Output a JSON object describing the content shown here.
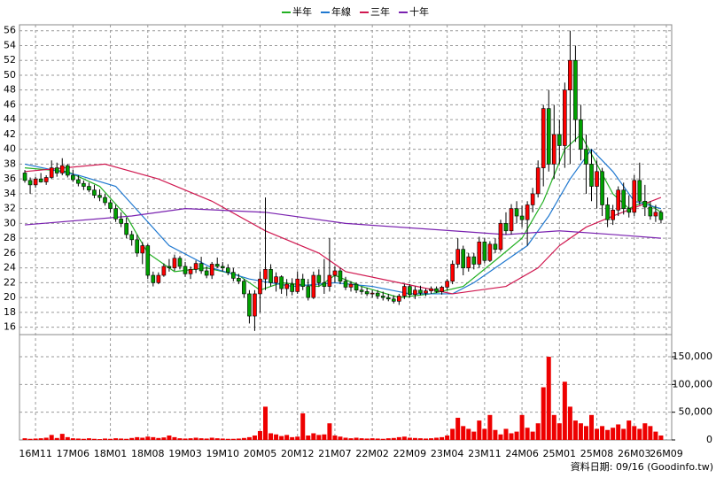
{
  "chart_data": {
    "type": "candlestick",
    "legend": [
      {
        "name": "半年",
        "color": "#22b022"
      },
      {
        "name": "年線",
        "color": "#1f78d0"
      },
      {
        "name": "三年",
        "color": "#d01850"
      },
      {
        "name": "十年",
        "color": "#7a22b0"
      }
    ],
    "up_color": "#ff0000",
    "down_color": "#00a000",
    "volume_color": "#ee0000",
    "grid": true,
    "xlim": [
      -1,
      121
    ],
    "xticks": [
      {
        "value": 2,
        "label": "16M11"
      },
      {
        "value": 9,
        "label": "17M06"
      },
      {
        "value": 16,
        "label": "18M01"
      },
      {
        "value": 23,
        "label": "18M08"
      },
      {
        "value": 30,
        "label": "19M03"
      },
      {
        "value": 37,
        "label": "19M10"
      },
      {
        "value": 44,
        "label": "20M05"
      },
      {
        "value": 51,
        "label": "20M12"
      },
      {
        "value": 58,
        "label": "21M07"
      },
      {
        "value": 65,
        "label": "22M02"
      },
      {
        "value": 72,
        "label": "22M09"
      },
      {
        "value": 79,
        "label": "23M04"
      },
      {
        "value": 86,
        "label": "23M11"
      },
      {
        "value": 93,
        "label": "24M06"
      },
      {
        "value": 100,
        "label": "25M01"
      },
      {
        "value": 107,
        "label": "25M08"
      },
      {
        "value": 114,
        "label": "26M03"
      },
      {
        "value": 120,
        "label": "26M09"
      }
    ],
    "ylim": [
      15,
      56.8
    ],
    "yticks": [
      16,
      18,
      20,
      22,
      24,
      26,
      28,
      30,
      32,
      34,
      36,
      38,
      40,
      42,
      44,
      46,
      48,
      50,
      52,
      54,
      56
    ],
    "y2lim": [
      0,
      190000
    ],
    "y2ticks": [
      0,
      {
        "value": 50000,
        "label": "50,000"
      },
      {
        "value": 100000,
        "label": "100,000"
      },
      {
        "value": 150000,
        "label": "150,000"
      }
    ],
    "ohlc": [
      [
        36.8,
        37.2,
        35.5,
        35.8
      ],
      [
        35.8,
        36.2,
        34,
        35.2
      ],
      [
        35.2,
        36.3,
        34.8,
        36
      ],
      [
        36,
        36.8,
        35.5,
        35.6
      ],
      [
        35.6,
        36.5,
        35.2,
        36.2
      ],
      [
        36.2,
        38.5,
        36,
        37.5
      ],
      [
        37.5,
        38.2,
        36.3,
        36.8
      ],
      [
        36.8,
        38.8,
        36.5,
        37.8
      ],
      [
        37.8,
        38,
        36.2,
        36.5
      ],
      [
        36.5,
        37.2,
        35.6,
        35.9
      ],
      [
        35.9,
        36.5,
        35,
        35.4
      ],
      [
        35.4,
        35.8,
        34.5,
        35
      ],
      [
        35,
        35.5,
        34.2,
        34.5
      ],
      [
        34.5,
        35.2,
        33.4,
        33.8
      ],
      [
        33.8,
        34.6,
        33,
        33.5
      ],
      [
        33.5,
        34,
        32.4,
        32.8
      ],
      [
        32.8,
        33.2,
        31.5,
        32
      ],
      [
        32,
        32.5,
        30.2,
        30.6
      ],
      [
        30.6,
        31.5,
        29.5,
        30
      ],
      [
        30,
        30.8,
        28,
        28.5
      ],
      [
        28.5,
        29,
        27,
        27.8
      ],
      [
        27.8,
        28.5,
        25.5,
        26
      ],
      [
        26,
        27.5,
        24.5,
        27
      ],
      [
        27,
        27.2,
        22.5,
        23
      ],
      [
        23,
        23.5,
        21.5,
        22
      ],
      [
        22,
        23.4,
        21.8,
        23
      ],
      [
        23,
        24.6,
        22.8,
        24.2
      ],
      [
        24.2,
        25.2,
        23.5,
        24
      ],
      [
        24,
        25.8,
        23.6,
        25.3
      ],
      [
        25.3,
        25.6,
        23.8,
        24.2
      ],
      [
        24.2,
        24.8,
        22.8,
        23.2
      ],
      [
        23.2,
        24.2,
        22.5,
        23.8
      ],
      [
        23.8,
        25,
        23.3,
        24.6
      ],
      [
        24.6,
        25.5,
        23.2,
        23.6
      ],
      [
        23.6,
        24.2,
        22.6,
        23
      ],
      [
        23,
        24.8,
        22.5,
        24.5
      ],
      [
        24.5,
        25.4,
        24,
        24.2
      ],
      [
        24.2,
        24.8,
        23.5,
        24
      ],
      [
        24,
        24.5,
        23,
        23.4
      ],
      [
        23.4,
        24,
        22.2,
        22.6
      ],
      [
        22.6,
        23.2,
        21.8,
        22.2
      ],
      [
        22.2,
        22.5,
        20,
        20.5
      ],
      [
        20.5,
        21,
        16.5,
        17.5
      ],
      [
        17.5,
        21,
        15.5,
        20.5
      ],
      [
        20.5,
        23.5,
        18,
        22.5
      ],
      [
        22.5,
        33.5,
        21,
        23.8
      ],
      [
        23.8,
        24.5,
        21.5,
        22
      ],
      [
        22,
        23.4,
        20.8,
        22.8
      ],
      [
        22.8,
        23,
        20.5,
        21.2
      ],
      [
        21.2,
        22.5,
        20.2,
        21.8
      ],
      [
        21.8,
        22.6,
        20.3,
        20.8
      ],
      [
        20.8,
        23.5,
        20.5,
        22.5
      ],
      [
        22.5,
        23.2,
        21,
        21.5
      ],
      [
        21.5,
        22.5,
        19.6,
        20
      ],
      [
        20,
        23.5,
        19.8,
        23
      ],
      [
        23,
        23.8,
        21.5,
        22
      ],
      [
        22,
        25.2,
        20.5,
        21.5
      ],
      [
        21.5,
        28,
        20.8,
        23
      ],
      [
        23,
        24.2,
        22,
        23.6
      ],
      [
        23.6,
        24,
        21.8,
        22.2
      ],
      [
        22.2,
        22.8,
        21,
        21.4
      ],
      [
        21.4,
        22.2,
        20.8,
        21.8
      ],
      [
        21.8,
        22,
        20.6,
        21
      ],
      [
        21,
        21.5,
        20.4,
        20.8
      ],
      [
        20.8,
        21.3,
        20.2,
        20.5
      ],
      [
        20.5,
        21,
        20,
        20.6
      ],
      [
        20.6,
        21,
        19.8,
        20.2
      ],
      [
        20.2,
        20.8,
        19.6,
        20
      ],
      [
        20,
        20.5,
        19.5,
        19.8
      ],
      [
        19.8,
        20.3,
        19.2,
        19.5
      ],
      [
        19.5,
        20.5,
        19,
        20.2
      ],
      [
        20.2,
        21.8,
        19.8,
        21.5
      ],
      [
        21.5,
        21.8,
        20,
        20.4
      ],
      [
        20.4,
        21.5,
        19.8,
        21
      ],
      [
        21,
        21.6,
        20.3,
        20.6
      ],
      [
        20.6,
        21.2,
        20.2,
        20.9
      ],
      [
        20.9,
        21.5,
        20.5,
        21.2
      ],
      [
        21.2,
        21.5,
        20.6,
        20.8
      ],
      [
        20.8,
        21.6,
        20.4,
        21.4
      ],
      [
        21.4,
        22.5,
        21,
        22.2
      ],
      [
        22.2,
        25,
        21.8,
        24.5
      ],
      [
        24.5,
        28,
        24,
        26.5
      ],
      [
        26.5,
        27,
        23,
        24
      ],
      [
        24,
        26,
        23.5,
        25.5
      ],
      [
        25.5,
        26,
        23.8,
        24.5
      ],
      [
        24.5,
        28.2,
        24,
        27.5
      ],
      [
        27.5,
        28,
        24.6,
        25
      ],
      [
        25,
        27.6,
        24.8,
        27.2
      ],
      [
        27.2,
        28,
        26,
        26.5
      ],
      [
        26.5,
        30.5,
        26.2,
        30
      ],
      [
        30,
        31.5,
        28.5,
        29
      ],
      [
        29,
        32.6,
        28.5,
        32
      ],
      [
        32,
        33,
        30,
        31
      ],
      [
        31,
        32.4,
        29.5,
        30.5
      ],
      [
        30.5,
        33,
        27,
        32.5
      ],
      [
        32.5,
        34.8,
        31.5,
        34
      ],
      [
        34,
        38.5,
        33.5,
        37.5
      ],
      [
        37.5,
        46,
        35,
        45.5
      ],
      [
        45.5,
        48,
        37,
        38
      ],
      [
        38,
        46,
        36,
        42
      ],
      [
        42,
        44,
        38,
        40.5
      ],
      [
        40.5,
        49,
        37.5,
        48
      ],
      [
        48,
        56,
        38,
        52
      ],
      [
        52,
        54,
        41,
        44
      ],
      [
        44,
        46,
        38.5,
        40
      ],
      [
        40,
        42,
        34,
        38
      ],
      [
        38,
        40,
        33,
        35
      ],
      [
        35,
        38.5,
        32,
        37
      ],
      [
        37,
        37.5,
        31,
        32.5
      ],
      [
        32.5,
        33.5,
        29.5,
        30.5
      ],
      [
        30.5,
        32.5,
        29.8,
        31.8
      ],
      [
        31.8,
        35,
        31,
        34.5
      ],
      [
        34.5,
        35.5,
        31.2,
        32
      ],
      [
        32,
        33.8,
        30.8,
        31.5
      ],
      [
        31.5,
        36.5,
        31,
        35.8
      ],
      [
        35.8,
        38.2,
        32.5,
        33
      ],
      [
        33,
        35.2,
        31,
        32.2
      ],
      [
        32.2,
        33,
        30.5,
        31
      ],
      [
        31,
        32.5,
        30.2,
        31.5
      ],
      [
        31.5,
        31.8,
        30,
        30.5
      ]
    ],
    "volume": [
      3000,
      2000,
      2500,
      3000,
      4000,
      9000,
      3500,
      11000,
      5000,
      3000,
      2500,
      2000,
      3000,
      2000,
      1500,
      2500,
      2000,
      3000,
      2500,
      2000,
      3500,
      5000,
      4000,
      6000,
      5000,
      3500,
      4500,
      8000,
      5000,
      3000,
      2500,
      3000,
      4000,
      3000,
      2500,
      4000,
      3000,
      2500,
      2000,
      2000,
      2500,
      3500,
      5000,
      8000,
      16000,
      60000,
      12000,
      10000,
      7000,
      9000,
      5000,
      6000,
      48000,
      8000,
      12000,
      9000,
      10000,
      30000,
      8000,
      6000,
      4000,
      3000,
      4000,
      3000,
      2500,
      3000,
      2500,
      2000,
      3000,
      3500,
      5000,
      6000,
      4000,
      3500,
      3000,
      2500,
      3000,
      4000,
      5000,
      8000,
      20000,
      40000,
      25000,
      20000,
      15000,
      35000,
      20000,
      45000,
      18000,
      10000,
      20000,
      12000,
      15000,
      45000,
      22000,
      15000,
      30000,
      95000,
      150000,
      45000,
      30000,
      105000,
      60000,
      35000,
      30000,
      25000,
      45000,
      20000,
      25000,
      18000,
      22000,
      28000,
      20000,
      35000,
      25000,
      20000,
      30000,
      25000,
      15000,
      8000
    ],
    "series": [
      {
        "name": "半年",
        "color": "#22b022",
        "x": [
          0,
          8,
          14,
          19,
          23,
          28,
          34,
          40,
          44,
          48,
          55,
          58,
          63,
          70,
          76,
          82,
          88,
          93,
          97,
          101,
          104,
          107,
          110,
          113,
          116,
          119
        ],
        "values": [
          37.5,
          37,
          35,
          31,
          26,
          23.5,
          24,
          23,
          21,
          22,
          21.5,
          23,
          21.5,
          20,
          20.5,
          21.5,
          25,
          28,
          33,
          40,
          42,
          38,
          34,
          32,
          33,
          31.5
        ]
      },
      {
        "name": "年線",
        "color": "#1f78d0",
        "x": [
          0,
          10,
          17,
          22,
          27,
          35,
          42,
          50,
          58,
          65,
          72,
          80,
          84,
          90,
          94,
          98,
          102,
          106,
          110,
          114,
          119
        ],
        "values": [
          38,
          36.5,
          35,
          31,
          27,
          24,
          22.5,
          21.5,
          22,
          21.5,
          20.5,
          20.5,
          22,
          25,
          27,
          31,
          36,
          40,
          37,
          33,
          32
        ]
      },
      {
        "name": "三年",
        "color": "#d01850",
        "x": [
          0,
          15,
          25,
          35,
          45,
          55,
          60,
          70,
          80,
          90,
          96,
          100,
          105,
          110,
          119
        ],
        "values": [
          37,
          38,
          36,
          33,
          29,
          26,
          23.5,
          22,
          20.5,
          21.5,
          24,
          27,
          29.5,
          31,
          33.5
        ]
      },
      {
        "name": "十年",
        "color": "#7a22b0",
        "x": [
          0,
          20,
          30,
          45,
          60,
          80,
          90,
          100,
          110,
          119
        ],
        "values": [
          29.8,
          31,
          32,
          31.5,
          30,
          29,
          28.5,
          29,
          28.5,
          28
        ]
      }
    ],
    "footnote": "資料日期: 09/16  (Goodinfo.tw)"
  }
}
